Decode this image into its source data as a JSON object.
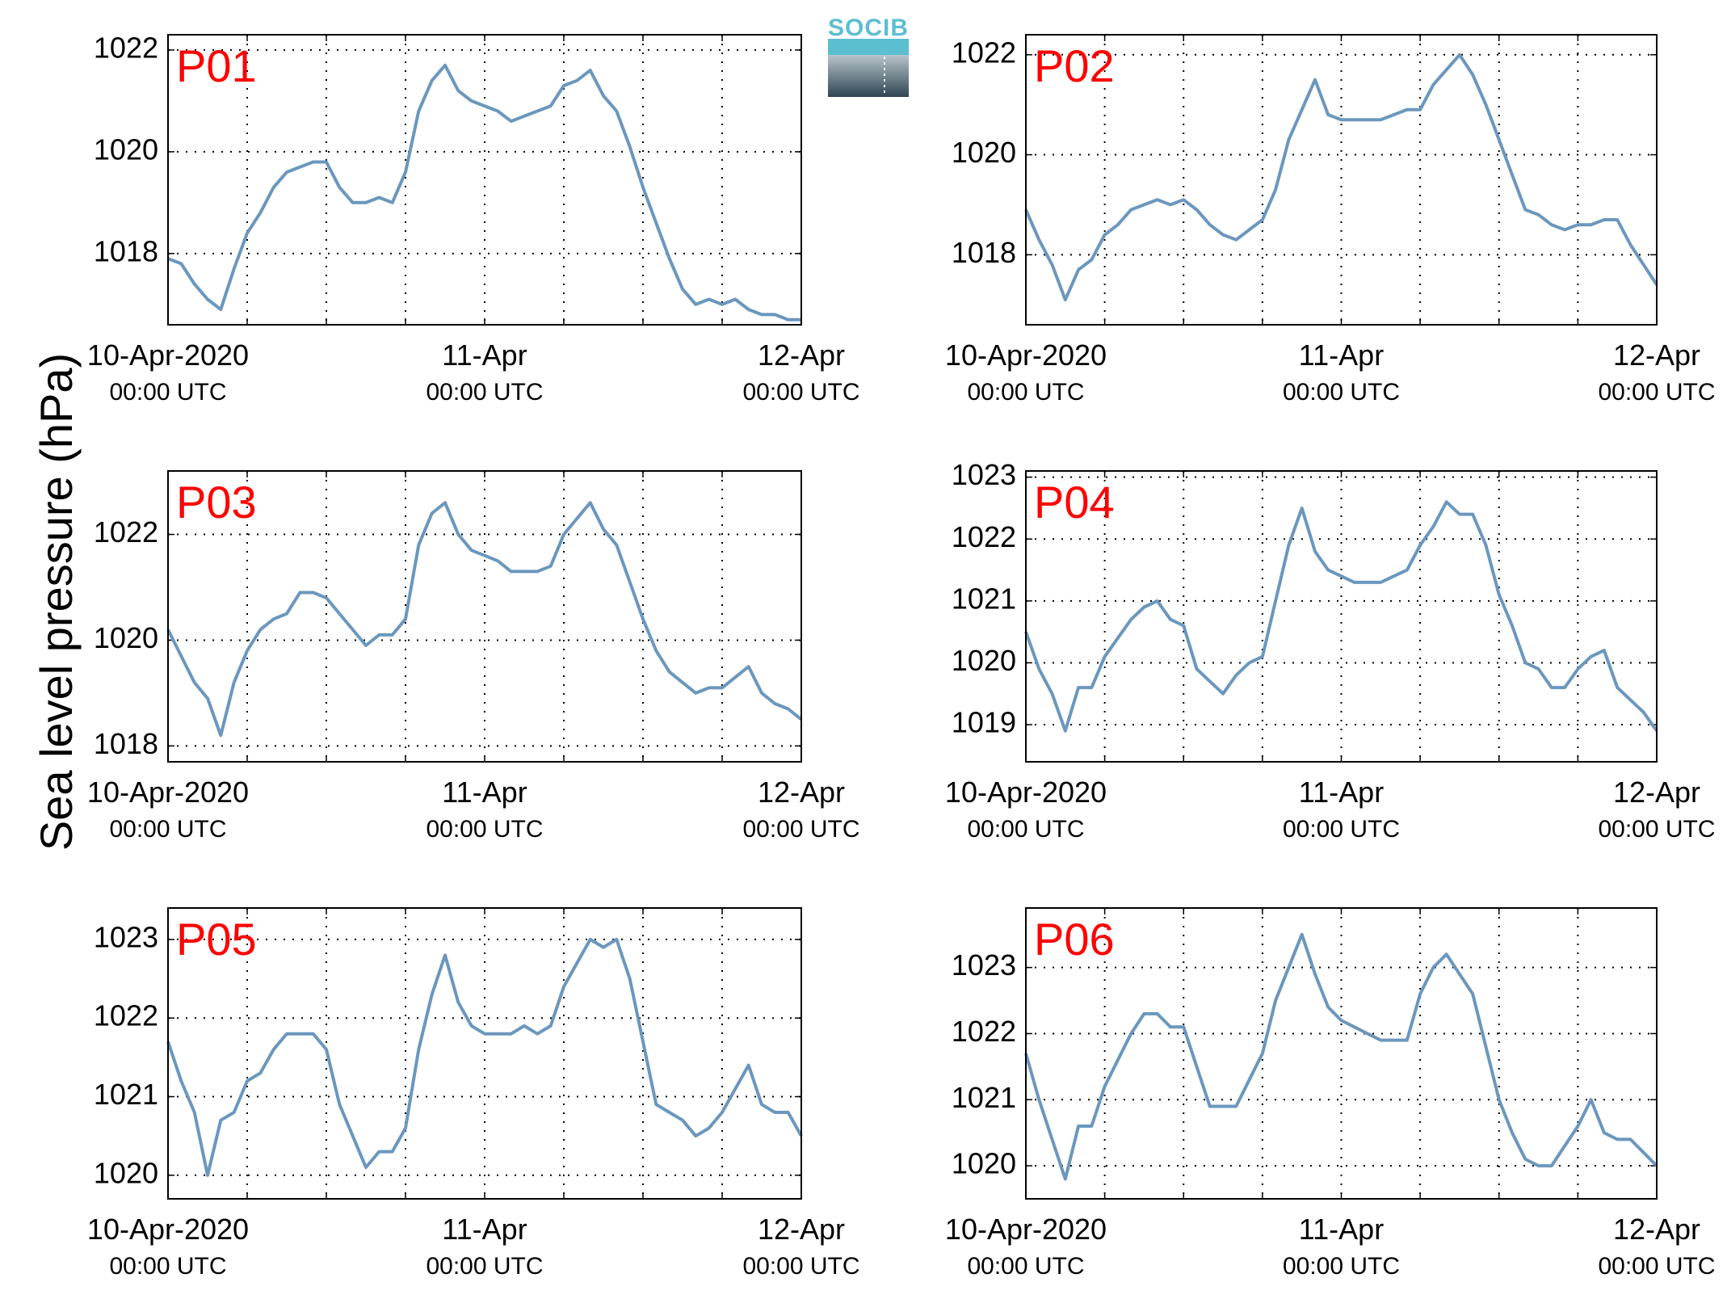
{
  "ylabel": "Sea level pressure (hPa)",
  "logo": {
    "text": "SOCIB"
  },
  "x_ticks": [
    {
      "main": "10-Apr-2020",
      "sub": "00:00 UTC"
    },
    {
      "main": "11-Apr",
      "sub": "00:00 UTC"
    },
    {
      "main": "12-Apr",
      "sub": "00:00 UTC"
    }
  ],
  "chart_data": [
    {
      "type": "line",
      "label": "P01",
      "xlim": [
        "2020-04-10 00:00",
        "2020-04-12 00:00"
      ],
      "ylim": [
        1016.6,
        1022.3
      ],
      "yticks": [
        1018,
        1020,
        1022
      ],
      "grid": true,
      "color": "#6b97bd",
      "x": [
        0,
        1,
        2,
        3,
        4,
        5,
        6,
        7,
        8,
        9,
        10,
        11,
        12,
        13,
        14,
        15,
        16,
        17,
        18,
        19,
        20,
        21,
        22,
        23,
        24,
        25,
        26,
        27,
        28,
        29,
        30,
        31,
        32,
        33,
        34,
        35,
        36,
        37,
        38,
        39,
        40,
        41,
        42,
        43,
        44,
        45,
        46,
        47,
        48
      ],
      "y": [
        1017.9,
        1017.8,
        1017.4,
        1017.1,
        1016.9,
        1017.7,
        1018.4,
        1018.8,
        1019.3,
        1019.6,
        1019.7,
        1019.8,
        1019.8,
        1019.3,
        1019.0,
        1019.0,
        1019.1,
        1019.0,
        1019.6,
        1020.8,
        1021.4,
        1021.7,
        1021.2,
        1021.0,
        1020.9,
        1020.8,
        1020.6,
        1020.7,
        1020.8,
        1020.9,
        1021.3,
        1021.4,
        1021.6,
        1021.1,
        1020.8,
        1020.1,
        1019.3,
        1018.6,
        1017.9,
        1017.3,
        1017.0,
        1017.1,
        1017.0,
        1017.1,
        1016.9,
        1016.8,
        1016.8,
        1016.7,
        1016.7
      ]
    },
    {
      "type": "line",
      "label": "P02",
      "xlim": [
        "2020-04-10 00:00",
        "2020-04-12 00:00"
      ],
      "ylim": [
        1016.6,
        1022.4
      ],
      "yticks": [
        1018,
        1020,
        1022
      ],
      "grid": true,
      "color": "#6b97bd",
      "x": [
        0,
        1,
        2,
        3,
        4,
        5,
        6,
        7,
        8,
        9,
        10,
        11,
        12,
        13,
        14,
        15,
        16,
        17,
        18,
        19,
        20,
        21,
        22,
        23,
        24,
        25,
        26,
        27,
        28,
        29,
        30,
        31,
        32,
        33,
        34,
        35,
        36,
        37,
        38,
        39,
        40,
        41,
        42,
        43,
        44,
        45,
        46,
        47,
        48
      ],
      "y": [
        1018.9,
        1018.3,
        1017.8,
        1017.1,
        1017.7,
        1017.9,
        1018.4,
        1018.6,
        1018.9,
        1019.0,
        1019.1,
        1019.0,
        1019.1,
        1018.9,
        1018.6,
        1018.4,
        1018.3,
        1018.5,
        1018.7,
        1019.3,
        1020.3,
        1020.9,
        1021.5,
        1020.8,
        1020.7,
        1020.7,
        1020.7,
        1020.7,
        1020.8,
        1020.9,
        1020.9,
        1021.4,
        1021.7,
        1022.0,
        1021.6,
        1021.0,
        1020.3,
        1019.6,
        1018.9,
        1018.8,
        1018.6,
        1018.5,
        1018.6,
        1018.6,
        1018.7,
        1018.7,
        1018.2,
        1017.8,
        1017.4
      ]
    },
    {
      "type": "line",
      "label": "P03",
      "xlim": [
        "2020-04-10 00:00",
        "2020-04-12 00:00"
      ],
      "ylim": [
        1017.7,
        1023.2
      ],
      "yticks": [
        1018,
        1020,
        1022
      ],
      "grid": true,
      "color": "#6b97bd",
      "x": [
        0,
        1,
        2,
        3,
        4,
        5,
        6,
        7,
        8,
        9,
        10,
        11,
        12,
        13,
        14,
        15,
        16,
        17,
        18,
        19,
        20,
        21,
        22,
        23,
        24,
        25,
        26,
        27,
        28,
        29,
        30,
        31,
        32,
        33,
        34,
        35,
        36,
        37,
        38,
        39,
        40,
        41,
        42,
        43,
        44,
        45,
        46,
        47,
        48
      ],
      "y": [
        1020.2,
        1019.7,
        1019.2,
        1018.9,
        1018.2,
        1019.2,
        1019.8,
        1020.2,
        1020.4,
        1020.5,
        1020.9,
        1020.9,
        1020.8,
        1020.5,
        1020.2,
        1019.9,
        1020.1,
        1020.1,
        1020.4,
        1021.8,
        1022.4,
        1022.6,
        1022.0,
        1021.7,
        1021.6,
        1021.5,
        1021.3,
        1021.3,
        1021.3,
        1021.4,
        1022.0,
        1022.3,
        1022.6,
        1022.1,
        1021.8,
        1021.1,
        1020.4,
        1019.8,
        1019.4,
        1019.2,
        1019.0,
        1019.1,
        1019.1,
        1019.3,
        1019.5,
        1019.0,
        1018.8,
        1018.7,
        1018.5
      ]
    },
    {
      "type": "line",
      "label": "P04",
      "xlim": [
        "2020-04-10 00:00",
        "2020-04-12 00:00"
      ],
      "ylim": [
        1018.4,
        1023.1
      ],
      "yticks": [
        1019,
        1020,
        1021,
        1022,
        1023
      ],
      "grid": true,
      "color": "#6b97bd",
      "x": [
        0,
        1,
        2,
        3,
        4,
        5,
        6,
        7,
        8,
        9,
        10,
        11,
        12,
        13,
        14,
        15,
        16,
        17,
        18,
        19,
        20,
        21,
        22,
        23,
        24,
        25,
        26,
        27,
        28,
        29,
        30,
        31,
        32,
        33,
        34,
        35,
        36,
        37,
        38,
        39,
        40,
        41,
        42,
        43,
        44,
        45,
        46,
        47,
        48
      ],
      "y": [
        1020.5,
        1019.9,
        1019.5,
        1018.9,
        1019.6,
        1019.6,
        1020.1,
        1020.4,
        1020.7,
        1020.9,
        1021.0,
        1020.7,
        1020.6,
        1019.9,
        1019.7,
        1019.5,
        1019.8,
        1020.0,
        1020.1,
        1021.0,
        1021.9,
        1022.5,
        1021.8,
        1021.5,
        1021.4,
        1021.3,
        1021.3,
        1021.3,
        1021.4,
        1021.5,
        1021.9,
        1022.2,
        1022.6,
        1022.4,
        1022.4,
        1021.9,
        1021.1,
        1020.6,
        1020.0,
        1019.9,
        1019.6,
        1019.6,
        1019.9,
        1020.1,
        1020.2,
        1019.6,
        1019.4,
        1019.2,
        1018.9
      ]
    },
    {
      "type": "line",
      "label": "P05",
      "xlim": [
        "2020-04-10 00:00",
        "2020-04-12 00:00"
      ],
      "ylim": [
        1019.7,
        1023.4
      ],
      "yticks": [
        1020,
        1021,
        1022,
        1023
      ],
      "grid": true,
      "color": "#6b97bd",
      "x": [
        0,
        1,
        2,
        3,
        4,
        5,
        6,
        7,
        8,
        9,
        10,
        11,
        12,
        13,
        14,
        15,
        16,
        17,
        18,
        19,
        20,
        21,
        22,
        23,
        24,
        25,
        26,
        27,
        28,
        29,
        30,
        31,
        32,
        33,
        34,
        35,
        36,
        37,
        38,
        39,
        40,
        41,
        42,
        43,
        44,
        45,
        46,
        47,
        48
      ],
      "y": [
        1021.7,
        1021.2,
        1020.8,
        1020.0,
        1020.7,
        1020.8,
        1021.2,
        1021.3,
        1021.6,
        1021.8,
        1021.8,
        1021.8,
        1021.6,
        1020.9,
        1020.5,
        1020.1,
        1020.3,
        1020.3,
        1020.6,
        1021.6,
        1022.3,
        1022.8,
        1022.2,
        1021.9,
        1021.8,
        1021.8,
        1021.8,
        1021.9,
        1021.8,
        1021.9,
        1022.4,
        1022.7,
        1023.0,
        1022.9,
        1023.0,
        1022.5,
        1021.7,
        1020.9,
        1020.8,
        1020.7,
        1020.5,
        1020.6,
        1020.8,
        1021.1,
        1021.4,
        1020.9,
        1020.8,
        1020.8,
        1020.5
      ]
    },
    {
      "type": "line",
      "label": "P06",
      "xlim": [
        "2020-04-10 00:00",
        "2020-04-12 00:00"
      ],
      "ylim": [
        1019.5,
        1023.9
      ],
      "yticks": [
        1020,
        1021,
        1022,
        1023
      ],
      "grid": true,
      "color": "#6b97bd",
      "x": [
        0,
        1,
        2,
        3,
        4,
        5,
        6,
        7,
        8,
        9,
        10,
        11,
        12,
        13,
        14,
        15,
        16,
        17,
        18,
        19,
        20,
        21,
        22,
        23,
        24,
        25,
        26,
        27,
        28,
        29,
        30,
        31,
        32,
        33,
        34,
        35,
        36,
        37,
        38,
        39,
        40,
        41,
        42,
        43,
        44,
        45,
        46,
        47,
        48
      ],
      "y": [
        1021.7,
        1021.0,
        1020.4,
        1019.8,
        1020.6,
        1020.6,
        1021.2,
        1021.6,
        1022.0,
        1022.3,
        1022.3,
        1022.1,
        1022.1,
        1021.5,
        1020.9,
        1020.9,
        1020.9,
        1021.3,
        1021.7,
        1022.5,
        1023.0,
        1023.5,
        1022.9,
        1022.4,
        1022.2,
        1022.1,
        1022.0,
        1021.9,
        1021.9,
        1021.9,
        1022.6,
        1023.0,
        1023.2,
        1022.9,
        1022.6,
        1021.8,
        1021.0,
        1020.5,
        1020.1,
        1020.0,
        1020.0,
        1020.3,
        1020.6,
        1021.0,
        1020.5,
        1020.4,
        1020.4,
        1020.2,
        1020.0
      ]
    }
  ]
}
